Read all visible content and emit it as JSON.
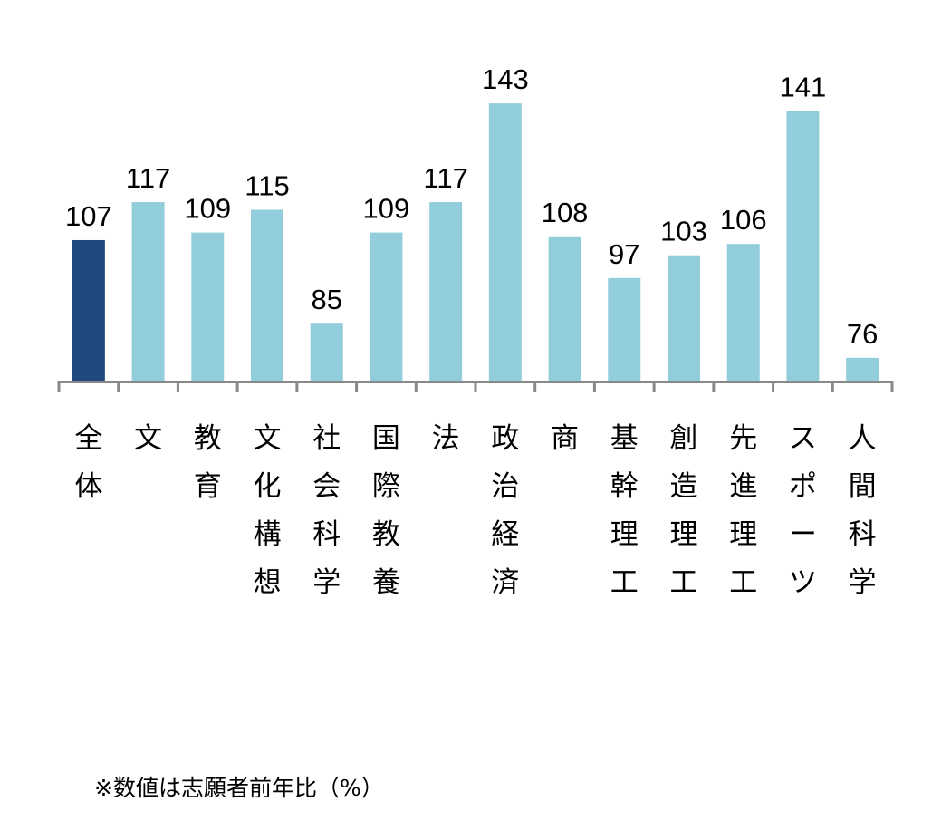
{
  "chart_data": {
    "type": "bar",
    "categories": [
      "全体",
      "文",
      "教育",
      "文化構想",
      "社会科学",
      "国際教養",
      "法",
      "政治経済",
      "商",
      "基幹理工",
      "創造理工",
      "先進理工",
      "スポーツ",
      "人間科学"
    ],
    "values": [
      107,
      117,
      109,
      115,
      85,
      109,
      117,
      143,
      108,
      97,
      103,
      106,
      141,
      76
    ],
    "data_labels": [
      "107",
      "117",
      "109",
      "115",
      "85",
      "109",
      "117",
      "143",
      "108",
      "97",
      "103",
      "106",
      "141",
      "76"
    ],
    "ylim": [
      70,
      150
    ],
    "grid": false,
    "highlight_index": 0,
    "colors": {
      "highlight": "#1F497D",
      "bar": "#92CDDC",
      "axis": "#898989"
    }
  },
  "footnote": "※数値は志願者前年比（%）"
}
